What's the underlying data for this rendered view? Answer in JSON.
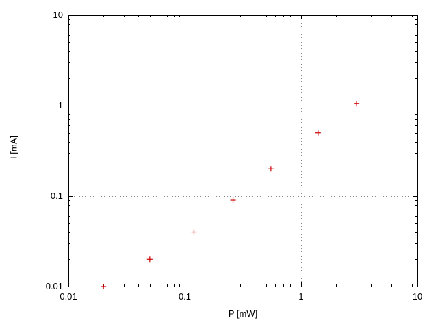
{
  "figure": {
    "background": "#ffffff"
  },
  "chart_data": {
    "type": "scatter",
    "title": "",
    "xlabel": "P [mW]",
    "ylabel": "I [mA]",
    "xscale": "log",
    "yscale": "log",
    "xlim": [
      0.01,
      10
    ],
    "ylim": [
      0.01,
      10
    ],
    "xticks": [
      0.01,
      0.1,
      1,
      10
    ],
    "xtick_labels": [
      "0.01",
      "0.1",
      "1",
      "10"
    ],
    "yticks": [
      0.01,
      0.1,
      1,
      10
    ],
    "ytick_labels": [
      "0.01",
      "0.1",
      "1",
      "10"
    ],
    "grid": true,
    "legend": "none",
    "marker": "plus",
    "colors": {
      "points": "#cc0000",
      "grid": "#888888",
      "axes": "#000000",
      "text": "#000000"
    },
    "points": [
      [
        0.02,
        0.01
      ],
      [
        0.05,
        0.02
      ],
      [
        0.12,
        0.04
      ],
      [
        0.26,
        0.09
      ],
      [
        0.55,
        0.2
      ],
      [
        1.4,
        0.5
      ],
      [
        3.0,
        1.05
      ]
    ]
  }
}
